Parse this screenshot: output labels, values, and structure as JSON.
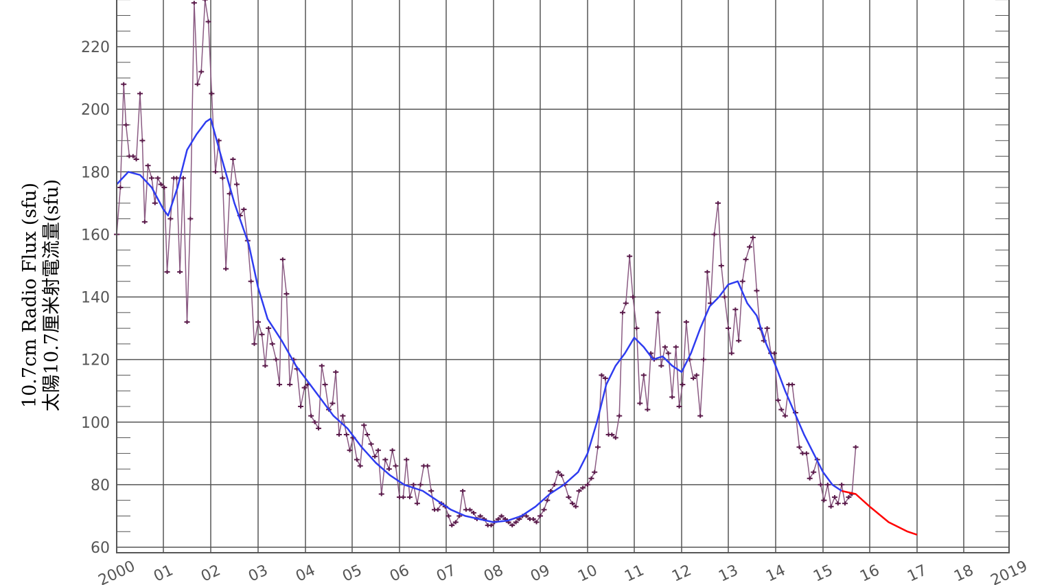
{
  "chart_data": {
    "type": "line",
    "ylabel_en": "10.7cm Radio Flux (sfu)",
    "ylabel_zh": "太陽10.7厘米射電流量(sfu)",
    "ylim": [
      60,
      235
    ],
    "xlim": [
      2000.0,
      2019.0
    ],
    "y_ticks": [
      "60",
      "80",
      "100",
      "120",
      "140",
      "160",
      "180",
      "200",
      "220"
    ],
    "x_ticks": [
      {
        "x": 2000,
        "label": "2000"
      },
      {
        "x": 2001,
        "label": "01"
      },
      {
        "x": 2002,
        "label": "02"
      },
      {
        "x": 2003,
        "label": "03"
      },
      {
        "x": 2004,
        "label": "04"
      },
      {
        "x": 2005,
        "label": "05"
      },
      {
        "x": 2006,
        "label": "06"
      },
      {
        "x": 2007,
        "label": "07"
      },
      {
        "x": 2008,
        "label": "08"
      },
      {
        "x": 2009,
        "label": "09"
      },
      {
        "x": 2010,
        "label": "10"
      },
      {
        "x": 2011,
        "label": "11"
      },
      {
        "x": 2012,
        "label": "12"
      },
      {
        "x": 2013,
        "label": "13"
      },
      {
        "x": 2014,
        "label": "14"
      },
      {
        "x": 2015,
        "label": "15"
      },
      {
        "x": 2016,
        "label": "16"
      },
      {
        "x": 2017,
        "label": "17"
      },
      {
        "x": 2018,
        "label": "18"
      },
      {
        "x": 2019,
        "label": "2019"
      }
    ],
    "grid": true,
    "series": [
      {
        "role": "monthly",
        "color": "#5a1a4a",
        "markers": true,
        "points": [
          [
            2000.0,
            160
          ],
          [
            2000.08,
            175
          ],
          [
            2000.15,
            208
          ],
          [
            2000.2,
            195
          ],
          [
            2000.27,
            185
          ],
          [
            2000.35,
            185
          ],
          [
            2000.42,
            184
          ],
          [
            2000.5,
            205
          ],
          [
            2000.55,
            190
          ],
          [
            2000.6,
            164
          ],
          [
            2000.67,
            182
          ],
          [
            2000.75,
            178
          ],
          [
            2000.82,
            170
          ],
          [
            2000.88,
            178
          ],
          [
            2000.95,
            176
          ],
          [
            2001.02,
            175
          ],
          [
            2001.08,
            148
          ],
          [
            2001.15,
            165
          ],
          [
            2001.22,
            178
          ],
          [
            2001.28,
            178
          ],
          [
            2001.35,
            148
          ],
          [
            2001.42,
            178
          ],
          [
            2001.5,
            132
          ],
          [
            2001.57,
            165
          ],
          [
            2001.65,
            234
          ],
          [
            2001.72,
            208
          ],
          [
            2001.8,
            212
          ],
          [
            2001.88,
            235
          ],
          [
            2001.95,
            228
          ],
          [
            2002.02,
            205
          ],
          [
            2002.1,
            180
          ],
          [
            2002.17,
            190
          ],
          [
            2002.25,
            178
          ],
          [
            2002.32,
            149
          ],
          [
            2002.4,
            173
          ],
          [
            2002.47,
            184
          ],
          [
            2002.55,
            176
          ],
          [
            2002.62,
            166
          ],
          [
            2002.7,
            168
          ],
          [
            2002.78,
            158
          ],
          [
            2002.85,
            145
          ],
          [
            2002.92,
            125
          ],
          [
            2003.0,
            132
          ],
          [
            2003.08,
            128
          ],
          [
            2003.15,
            118
          ],
          [
            2003.22,
            130
          ],
          [
            2003.3,
            125
          ],
          [
            2003.38,
            120
          ],
          [
            2003.45,
            112
          ],
          [
            2003.52,
            152
          ],
          [
            2003.6,
            141
          ],
          [
            2003.67,
            112
          ],
          [
            2003.75,
            120
          ],
          [
            2003.82,
            117
          ],
          [
            2003.9,
            105
          ],
          [
            2003.98,
            111
          ],
          [
            2004.05,
            112
          ],
          [
            2004.12,
            102
          ],
          [
            2004.2,
            100
          ],
          [
            2004.28,
            98
          ],
          [
            2004.35,
            118
          ],
          [
            2004.42,
            112
          ],
          [
            2004.5,
            104
          ],
          [
            2004.58,
            106
          ],
          [
            2004.65,
            116
          ],
          [
            2004.72,
            96
          ],
          [
            2004.8,
            102
          ],
          [
            2004.88,
            96
          ],
          [
            2004.95,
            91
          ],
          [
            2005.02,
            95
          ],
          [
            2005.1,
            88
          ],
          [
            2005.17,
            86
          ],
          [
            2005.25,
            99
          ],
          [
            2005.32,
            96
          ],
          [
            2005.4,
            93
          ],
          [
            2005.48,
            89
          ],
          [
            2005.55,
            91
          ],
          [
            2005.62,
            77
          ],
          [
            2005.7,
            88
          ],
          [
            2005.78,
            85
          ],
          [
            2005.85,
            91
          ],
          [
            2005.92,
            86
          ],
          [
            2006.0,
            76
          ],
          [
            2006.08,
            76
          ],
          [
            2006.15,
            88
          ],
          [
            2006.22,
            76
          ],
          [
            2006.3,
            80
          ],
          [
            2006.38,
            74
          ],
          [
            2006.45,
            80
          ],
          [
            2006.52,
            86
          ],
          [
            2006.6,
            86
          ],
          [
            2006.68,
            78
          ],
          [
            2006.75,
            72
          ],
          [
            2006.82,
            72
          ],
          [
            2006.9,
            74
          ],
          [
            2006.98,
            73
          ],
          [
            2007.05,
            70
          ],
          [
            2007.12,
            67
          ],
          [
            2007.2,
            68
          ],
          [
            2007.28,
            70
          ],
          [
            2007.35,
            78
          ],
          [
            2007.42,
            72
          ],
          [
            2007.5,
            72
          ],
          [
            2007.58,
            71
          ],
          [
            2007.65,
            69
          ],
          [
            2007.72,
            70
          ],
          [
            2007.8,
            69
          ],
          [
            2007.88,
            67
          ],
          [
            2007.95,
            67
          ],
          [
            2008.02,
            68
          ],
          [
            2008.1,
            69
          ],
          [
            2008.17,
            70
          ],
          [
            2008.25,
            69
          ],
          [
            2008.32,
            68
          ],
          [
            2008.4,
            67
          ],
          [
            2008.48,
            68
          ],
          [
            2008.55,
            69
          ],
          [
            2008.62,
            70
          ],
          [
            2008.7,
            70
          ],
          [
            2008.78,
            69
          ],
          [
            2008.85,
            69
          ],
          [
            2008.92,
            68
          ],
          [
            2009.0,
            70
          ],
          [
            2009.08,
            72
          ],
          [
            2009.15,
            75
          ],
          [
            2009.22,
            78
          ],
          [
            2009.3,
            80
          ],
          [
            2009.38,
            84
          ],
          [
            2009.45,
            83
          ],
          [
            2009.52,
            80
          ],
          [
            2009.6,
            76
          ],
          [
            2009.68,
            74
          ],
          [
            2009.75,
            73
          ],
          [
            2009.82,
            78
          ],
          [
            2009.9,
            79
          ],
          [
            2010.0,
            80
          ],
          [
            2010.08,
            82
          ],
          [
            2010.15,
            84
          ],
          [
            2010.22,
            92
          ],
          [
            2010.3,
            115
          ],
          [
            2010.38,
            114
          ],
          [
            2010.45,
            96
          ],
          [
            2010.52,
            96
          ],
          [
            2010.6,
            95
          ],
          [
            2010.68,
            102
          ],
          [
            2010.75,
            135
          ],
          [
            2010.82,
            138
          ],
          [
            2010.9,
            153
          ],
          [
            2010.97,
            140
          ],
          [
            2011.05,
            130
          ],
          [
            2011.12,
            106
          ],
          [
            2011.2,
            115
          ],
          [
            2011.28,
            104
          ],
          [
            2011.35,
            122
          ],
          [
            2011.42,
            120
          ],
          [
            2011.5,
            135
          ],
          [
            2011.57,
            118
          ],
          [
            2011.65,
            124
          ],
          [
            2011.72,
            122
          ],
          [
            2011.8,
            108
          ],
          [
            2011.88,
            124
          ],
          [
            2011.95,
            105
          ],
          [
            2012.02,
            112
          ],
          [
            2012.1,
            132
          ],
          [
            2012.17,
            120
          ],
          [
            2012.25,
            114
          ],
          [
            2012.32,
            115
          ],
          [
            2012.4,
            102
          ],
          [
            2012.47,
            120
          ],
          [
            2012.55,
            148
          ],
          [
            2012.62,
            138
          ],
          [
            2012.7,
            160
          ],
          [
            2012.78,
            170
          ],
          [
            2012.85,
            150
          ],
          [
            2012.92,
            140
          ],
          [
            2013.0,
            130
          ],
          [
            2013.07,
            122
          ],
          [
            2013.15,
            136
          ],
          [
            2013.22,
            126
          ],
          [
            2013.3,
            145
          ],
          [
            2013.37,
            152
          ],
          [
            2013.45,
            156
          ],
          [
            2013.52,
            159
          ],
          [
            2013.6,
            142
          ],
          [
            2013.67,
            130
          ],
          [
            2013.75,
            126
          ],
          [
            2013.82,
            130
          ],
          [
            2013.9,
            122
          ],
          [
            2013.97,
            122
          ],
          [
            2014.05,
            107
          ],
          [
            2014.12,
            104
          ],
          [
            2014.2,
            102
          ],
          [
            2014.28,
            112
          ],
          [
            2014.35,
            112
          ],
          [
            2014.42,
            103
          ],
          [
            2014.5,
            92
          ],
          [
            2014.57,
            90
          ],
          [
            2014.65,
            90
          ],
          [
            2014.72,
            82
          ],
          [
            2014.8,
            84
          ],
          [
            2014.88,
            88
          ],
          [
            2014.95,
            80
          ],
          [
            2015.02,
            75
          ],
          [
            2015.1,
            80
          ],
          [
            2015.17,
            73
          ],
          [
            2015.25,
            76
          ],
          [
            2015.32,
            74
          ],
          [
            2015.4,
            80
          ],
          [
            2015.47,
            74
          ],
          [
            2015.55,
            76
          ],
          [
            2015.62,
            77
          ],
          [
            2015.7,
            92
          ]
        ]
      },
      {
        "role": "smoothed",
        "color": "#2e3cf0",
        "points": [
          [
            2000.0,
            176
          ],
          [
            2000.25,
            180
          ],
          [
            2000.5,
            179
          ],
          [
            2000.75,
            175
          ],
          [
            2001.0,
            168
          ],
          [
            2001.1,
            166
          ],
          [
            2001.3,
            175
          ],
          [
            2001.5,
            187
          ],
          [
            2001.7,
            192
          ],
          [
            2001.9,
            196
          ],
          [
            2002.0,
            197
          ],
          [
            2002.2,
            186
          ],
          [
            2002.5,
            170
          ],
          [
            2002.8,
            157
          ],
          [
            2003.0,
            143
          ],
          [
            2003.2,
            133
          ],
          [
            2003.5,
            126
          ],
          [
            2003.8,
            118
          ],
          [
            2004.0,
            114
          ],
          [
            2004.3,
            108
          ],
          [
            2004.6,
            102
          ],
          [
            2004.9,
            98
          ],
          [
            2005.2,
            92
          ],
          [
            2005.5,
            87
          ],
          [
            2005.8,
            83
          ],
          [
            2006.1,
            80
          ],
          [
            2006.5,
            78
          ],
          [
            2006.8,
            75
          ],
          [
            2007.1,
            72
          ],
          [
            2007.4,
            70
          ],
          [
            2007.7,
            69
          ],
          [
            2008.0,
            68
          ],
          [
            2008.3,
            68.5
          ],
          [
            2008.6,
            70
          ],
          [
            2008.9,
            73
          ],
          [
            2009.2,
            77
          ],
          [
            2009.5,
            80
          ],
          [
            2009.8,
            84
          ],
          [
            2010.0,
            90
          ],
          [
            2010.2,
            100
          ],
          [
            2010.4,
            112
          ],
          [
            2010.6,
            118
          ],
          [
            2010.8,
            122
          ],
          [
            2011.0,
            127
          ],
          [
            2011.2,
            124
          ],
          [
            2011.4,
            120
          ],
          [
            2011.6,
            121
          ],
          [
            2011.8,
            118
          ],
          [
            2012.0,
            116
          ],
          [
            2012.2,
            122
          ],
          [
            2012.4,
            130
          ],
          [
            2012.6,
            137
          ],
          [
            2012.8,
            140
          ],
          [
            2013.0,
            144
          ],
          [
            2013.2,
            145
          ],
          [
            2013.4,
            138
          ],
          [
            2013.6,
            134
          ],
          [
            2013.8,
            125
          ],
          [
            2014.0,
            118
          ],
          [
            2014.2,
            110
          ],
          [
            2014.4,
            103
          ],
          [
            2014.6,
            96
          ],
          [
            2014.8,
            90
          ],
          [
            2015.0,
            84
          ],
          [
            2015.2,
            80
          ],
          [
            2015.4,
            78
          ]
        ]
      },
      {
        "role": "forecast",
        "color": "#ff0000",
        "points": [
          [
            2015.4,
            78
          ],
          [
            2015.7,
            77
          ],
          [
            2016.0,
            73
          ],
          [
            2016.4,
            68
          ],
          [
            2016.8,
            65
          ],
          [
            2017.0,
            64
          ]
        ]
      }
    ]
  }
}
